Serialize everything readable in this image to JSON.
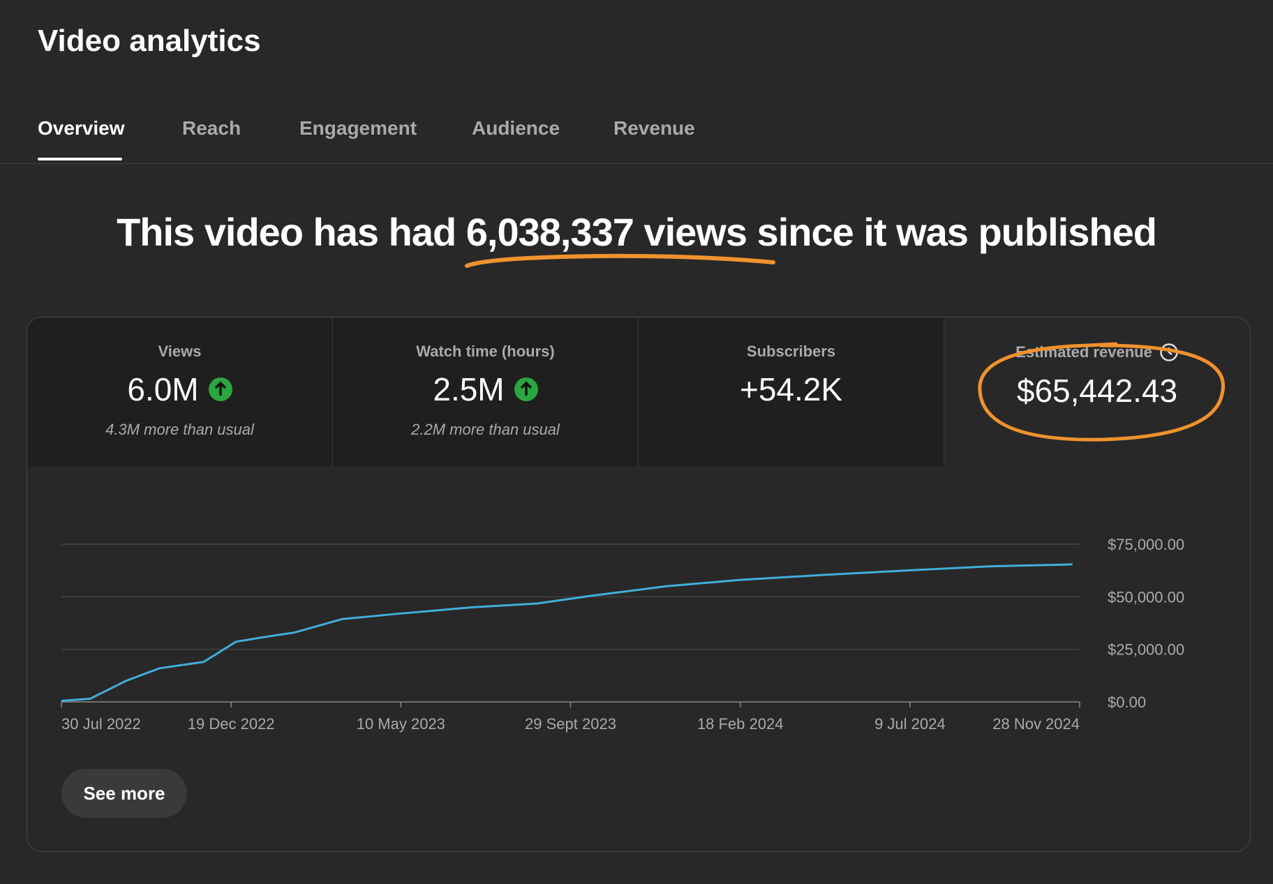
{
  "header": {
    "title": "Video analytics"
  },
  "tabs": [
    "Overview",
    "Reach",
    "Engagement",
    "Audience",
    "Revenue"
  ],
  "headline": {
    "before": "This video has had ",
    "highlight": "6,038,337 views",
    "after": " since it was published"
  },
  "metrics": [
    {
      "label": "Views",
      "value": "6.0M",
      "note": "4.3M more than usual"
    },
    {
      "label": "Watch time (hours)",
      "value": "2.5M",
      "note": "2.2M more than usual"
    },
    {
      "label": "Subscribers",
      "value": "+54.2K"
    },
    {
      "label": "Estimated revenue",
      "value": "$65,442.43"
    }
  ],
  "chart_data": {
    "type": "line",
    "color": "#41aedc",
    "grid": true,
    "x": [
      "2022-07-30",
      "2022-08-23",
      "2022-09-22",
      "2022-10-20",
      "2022-11-26",
      "2022-12-23",
      "2023-01-12",
      "2023-02-10",
      "2023-03-22",
      "2023-05-09",
      "2023-07-09",
      "2023-09-01",
      "2023-10-18",
      "2023-12-18",
      "2024-02-17",
      "2024-04-25",
      "2024-07-09",
      "2024-09-15",
      "2024-11-22"
    ],
    "values": [
      500,
      1500,
      10000,
      16000,
      19000,
      28600,
      30500,
      33000,
      39400,
      42000,
      45000,
      46800,
      50600,
      55000,
      58000,
      60300,
      62600,
      64500,
      65400
    ],
    "xlim": [
      "2022-07-30",
      "2024-11-28"
    ],
    "xticks": [
      {
        "value": "2022-07-30",
        "label": "30 Jul 2022"
      },
      {
        "value": "2022-12-19",
        "label": "19 Dec 2022"
      },
      {
        "value": "2023-05-10",
        "label": "10 May 2023"
      },
      {
        "value": "2023-09-29",
        "label": "29 Sept 2023"
      },
      {
        "value": "2024-02-18",
        "label": "18 Feb 2024"
      },
      {
        "value": "2024-07-09",
        "label": "9 Jul 2024"
      },
      {
        "value": "2024-11-28",
        "label": "28 Nov 2024"
      }
    ],
    "ylim": [
      0,
      75000
    ],
    "yticks": [
      {
        "value": 0,
        "label": "$0.00"
      },
      {
        "value": 25000,
        "label": "$25,000.00"
      },
      {
        "value": 50000,
        "label": "$50,000.00"
      },
      {
        "value": 75000,
        "label": "$75,000.00"
      }
    ]
  },
  "button": "See more"
}
